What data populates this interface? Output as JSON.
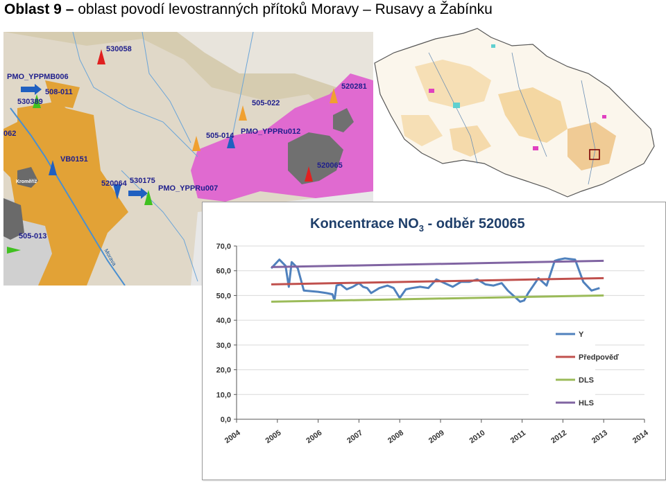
{
  "page": {
    "title_bold": "Oblast 9 –",
    "title_rest": " oblast povodí levostranných přítoků Moravy – Rusavy a Žabínku"
  },
  "local_map": {
    "labels": {
      "l530058": "530058",
      "lPMO_YPPMB006": "PMO_YPPMB006",
      "l508_011": "508-011",
      "l530389": "530389",
      "l505_022": "505-022",
      "l520281": "520281",
      "l062": "062",
      "l505_014": "505-014",
      "lPMO_YPPRu012": "PMO_YPPRu012",
      "lVB0151": "VB0151",
      "l520065": "520065",
      "lKromeriz": "Kroměříž",
      "l520064": "520064",
      "l530175": "530175",
      "lPMO_YPPRu007": "PMO_YPPRu007",
      "l505_013": "505-013",
      "lMorava": "Morava"
    }
  },
  "chart_data": {
    "type": "line",
    "title": "Koncentrace NO3 - odběr 520065",
    "title_main": "Koncentrace NO",
    "title_sub": "3",
    "title_tail": " - odběr 520065",
    "ylim": [
      0,
      70
    ],
    "yticks": [
      "0,0",
      "10,0",
      "20,0",
      "30,0",
      "40,0",
      "50,0",
      "60,0",
      "70,0"
    ],
    "xlim": [
      2004,
      2014
    ],
    "xticks": [
      "2004",
      "2005",
      "2006",
      "2007",
      "2008",
      "2009",
      "2010",
      "2011",
      "2012",
      "2013",
      "2014"
    ],
    "series": [
      {
        "name": "Y",
        "color": "#4f81bd",
        "x": [
          2004.85,
          2005.05,
          2005.2,
          2005.28,
          2005.35,
          2005.5,
          2005.65,
          2006.0,
          2006.2,
          2006.35,
          2006.4,
          2006.45,
          2006.55,
          2006.7,
          2006.85,
          2007.0,
          2007.1,
          2007.2,
          2007.3,
          2007.5,
          2007.7,
          2007.85,
          2008.0,
          2008.15,
          2008.3,
          2008.5,
          2008.7,
          2008.9,
          2009.1,
          2009.3,
          2009.5,
          2009.7,
          2009.9,
          2010.1,
          2010.3,
          2010.5,
          2010.65,
          2010.85,
          2010.95,
          2011.05,
          2011.15,
          2011.4,
          2011.6,
          2011.8,
          2011.9,
          2012.05,
          2012.3,
          2012.5,
          2012.7,
          2012.9
        ],
        "values": [
          61,
          64.5,
          62,
          53.5,
          63.5,
          61,
          52,
          51.5,
          51,
          50.5,
          48,
          54,
          54.5,
          52.5,
          53.5,
          55,
          53.5,
          53,
          51,
          53,
          54,
          53,
          49,
          52.5,
          53,
          53.5,
          53,
          56.5,
          55,
          53.5,
          55.5,
          55.5,
          56.5,
          54.5,
          54,
          55,
          52,
          49,
          47.5,
          48,
          51,
          57,
          54,
          64,
          64.5,
          65,
          64.5,
          55.5,
          52,
          53
        ]
      },
      {
        "name": "Předpověď",
        "color": "#c0504d",
        "x": [
          2004.85,
          2013.0
        ],
        "values": [
          54.5,
          57
        ]
      },
      {
        "name": "DLS",
        "color": "#9bbb59",
        "x": [
          2004.85,
          2013.0
        ],
        "values": [
          47.5,
          50
        ]
      },
      {
        "name": "HLS",
        "color": "#8064a2",
        "x": [
          2004.85,
          2013.0
        ],
        "values": [
          61.5,
          64
        ]
      }
    ],
    "legend_position": "right",
    "grid": "horizontal"
  }
}
